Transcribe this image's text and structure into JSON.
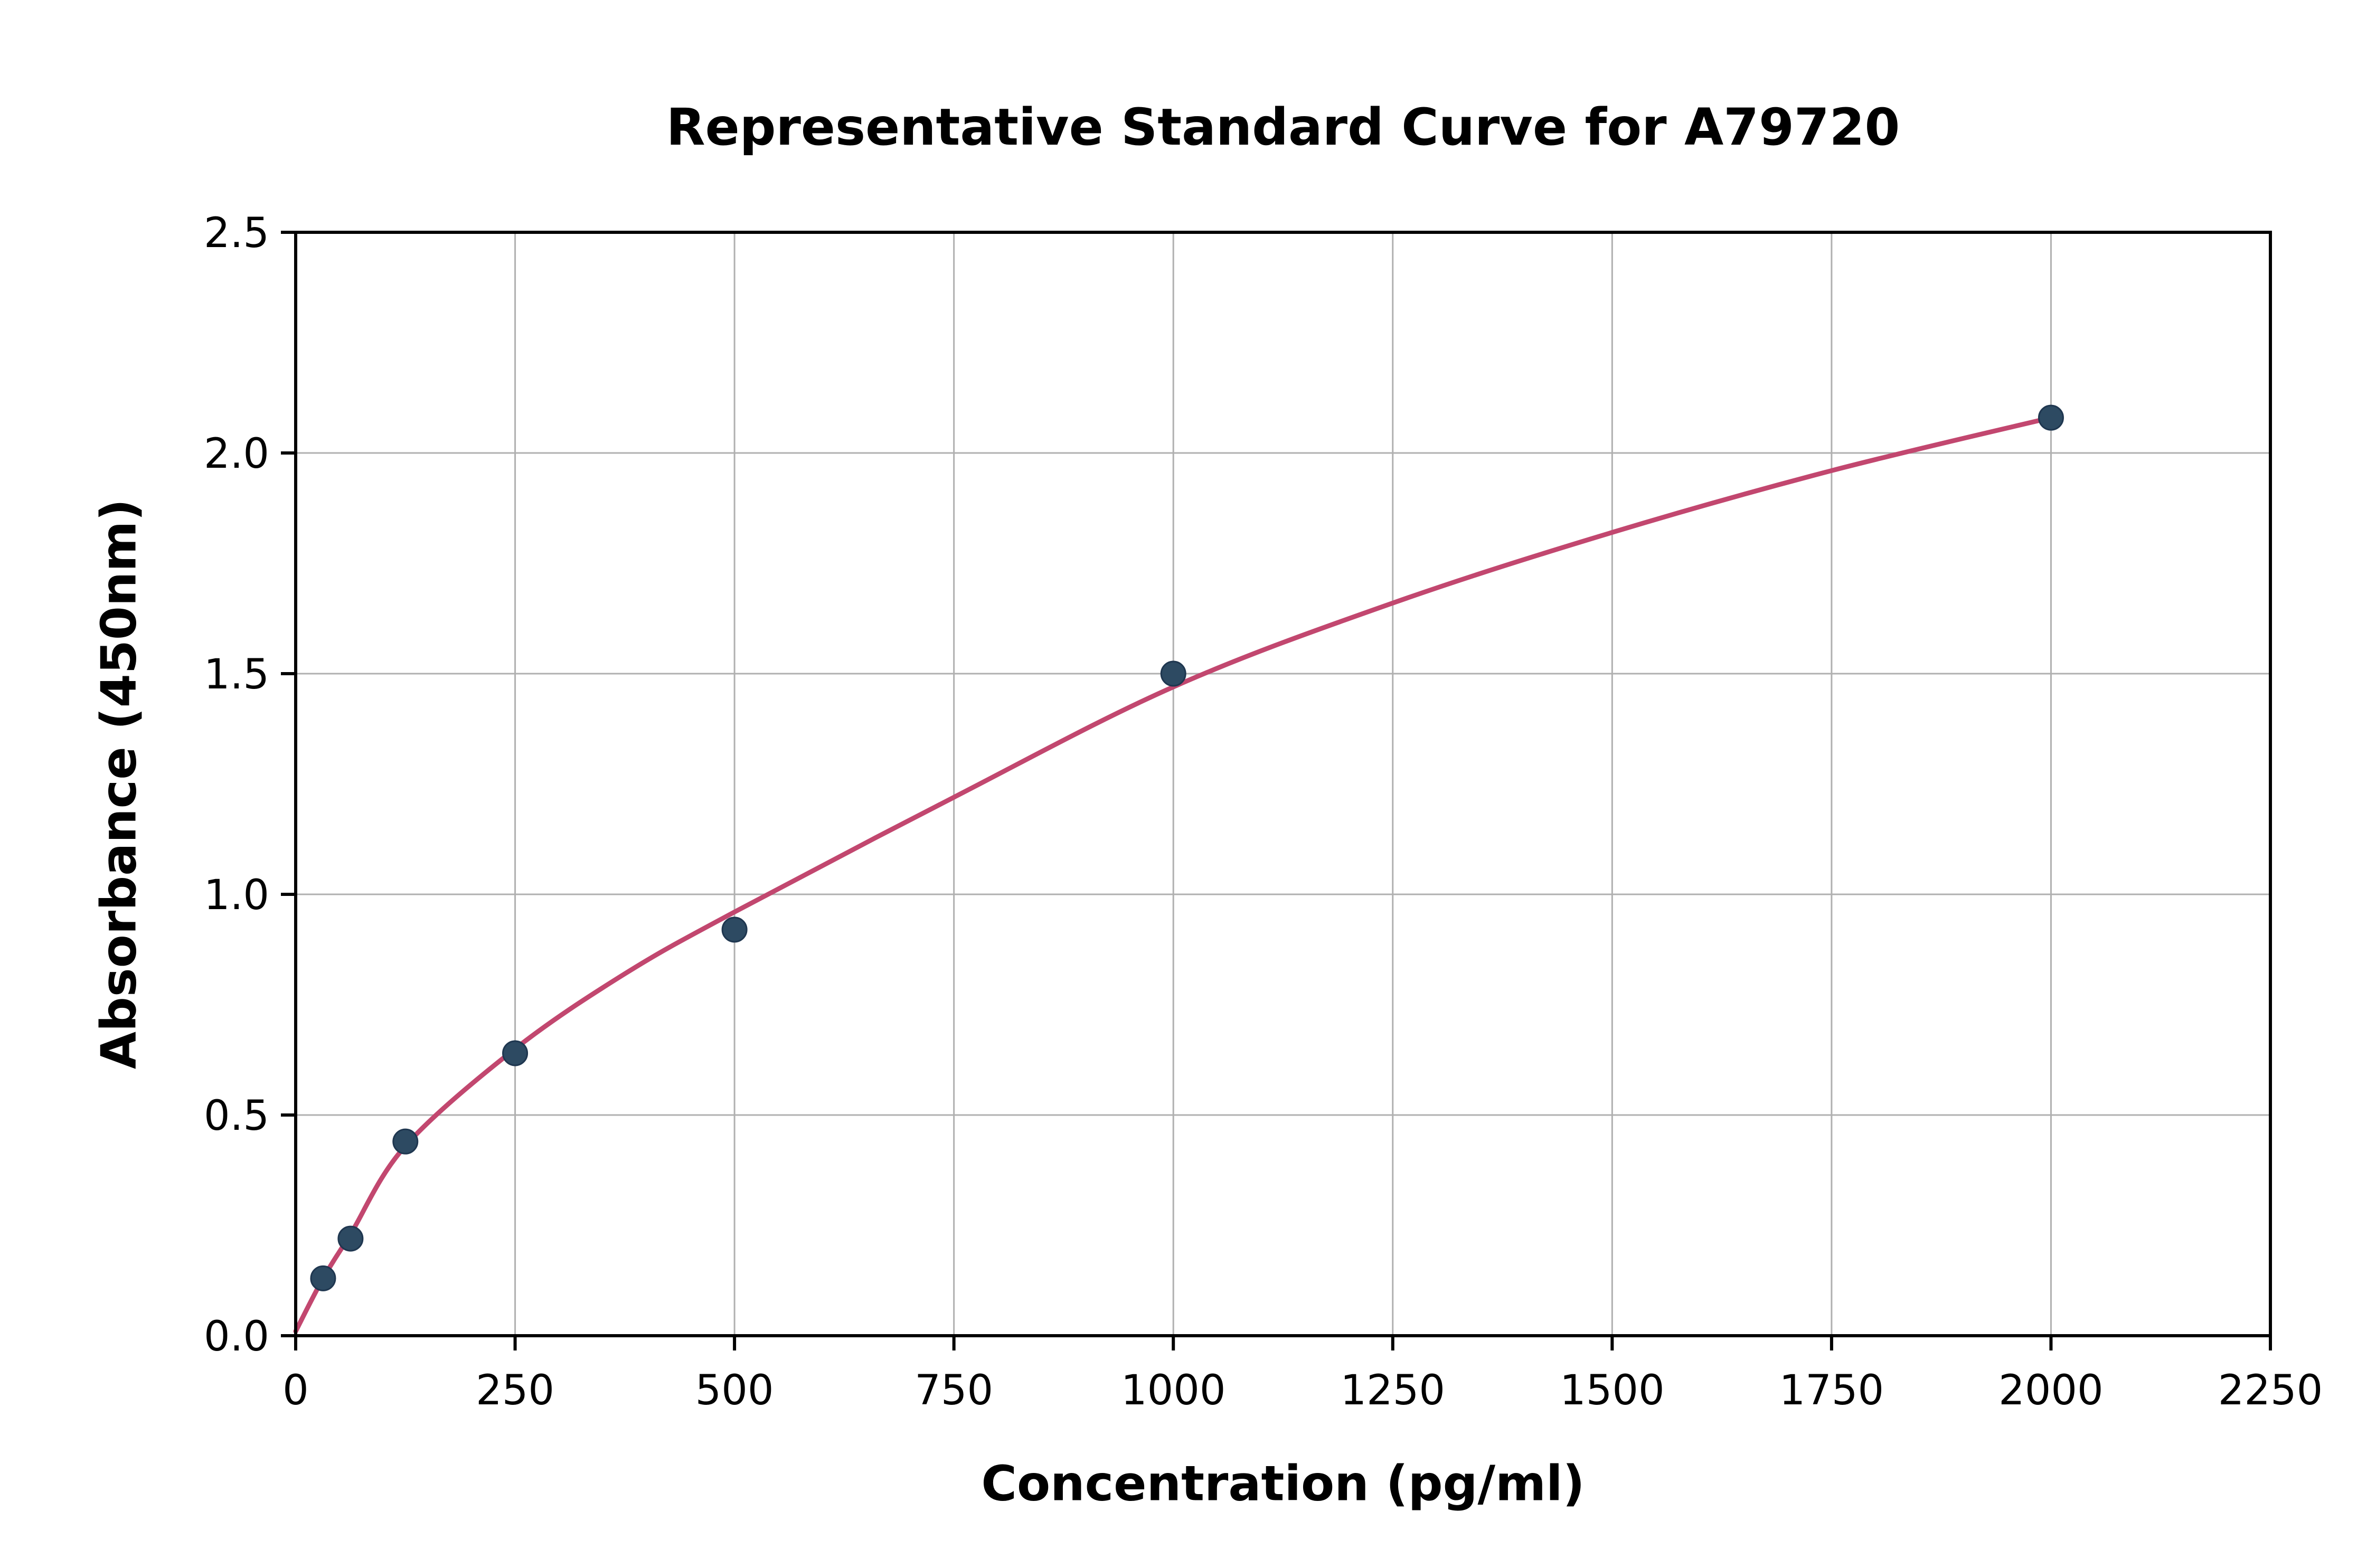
{
  "chart_data": {
    "type": "scatter",
    "title": "Representative Standard Curve for A79720",
    "xlabel": "Concentration (pg/ml)",
    "ylabel": "Absorbance (450nm)",
    "xlim": [
      0,
      2250
    ],
    "ylim": [
      0,
      2.5
    ],
    "xticks": [
      0,
      250,
      500,
      750,
      1000,
      1250,
      1500,
      1750,
      2000,
      2250
    ],
    "xtick_labels": [
      "0",
      "250",
      "500",
      "750",
      "1000",
      "1250",
      "1500",
      "1750",
      "2000",
      "2250"
    ],
    "yticks": [
      0,
      0.5,
      1.0,
      1.5,
      2.0,
      2.5
    ],
    "ytick_labels": [
      "0.0",
      "0.5",
      "1.0",
      "1.5",
      "2.0",
      "2.5"
    ],
    "grid": true,
    "legend": "none",
    "points": [
      {
        "x": 31.25,
        "y": 0.13
      },
      {
        "x": 62.5,
        "y": 0.22
      },
      {
        "x": 125,
        "y": 0.44
      },
      {
        "x": 250,
        "y": 0.64
      },
      {
        "x": 500,
        "y": 0.92
      },
      {
        "x": 1000,
        "y": 1.5
      },
      {
        "x": 2000,
        "y": 2.08
      }
    ],
    "fit_curve_points": [
      [
        0,
        0.01
      ],
      [
        31.25,
        0.13
      ],
      [
        62.5,
        0.23
      ],
      [
        125,
        0.43
      ],
      [
        250,
        0.65
      ],
      [
        375,
        0.82
      ],
      [
        500,
        0.96
      ],
      [
        750,
        1.22
      ],
      [
        1000,
        1.47
      ],
      [
        1250,
        1.66
      ],
      [
        1500,
        1.82
      ],
      [
        1750,
        1.96
      ],
      [
        2000,
        2.08
      ]
    ],
    "colors": {
      "point": "#2d4a62",
      "point_edge": "#1f3750",
      "line": "#c2476f",
      "grid": "#b0b0b0",
      "spine": "#000000",
      "text": "#000000",
      "background": "#ffffff"
    }
  }
}
